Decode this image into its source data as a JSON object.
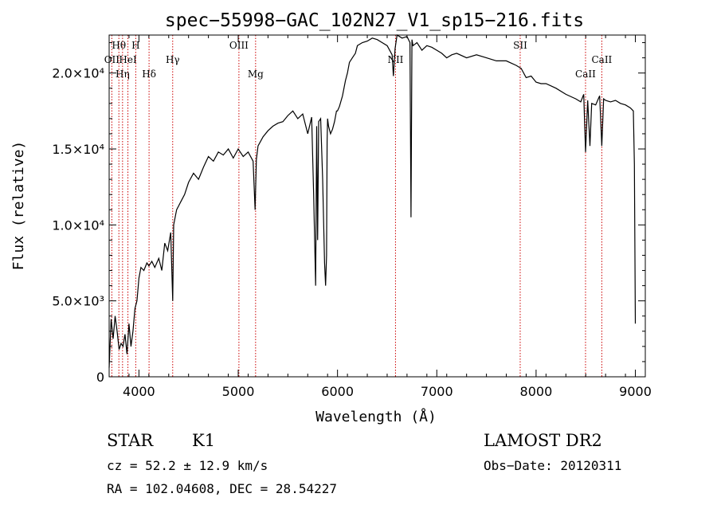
{
  "chart_data": {
    "type": "line",
    "title": "spec−55998−GAC_102N27_V1_sp15−216.fits",
    "xlabel": "Wavelength (Å)",
    "ylabel": "Flux (relative)",
    "xlim": [
      3700,
      9100
    ],
    "ylim": [
      0,
      22500
    ],
    "x_ticks": [
      {
        "value": 4000,
        "label": "4000"
      },
      {
        "value": 5000,
        "label": "5000"
      },
      {
        "value": 6000,
        "label": "6000"
      },
      {
        "value": 7000,
        "label": "7000"
      },
      {
        "value": 8000,
        "label": "8000"
      },
      {
        "value": 9000,
        "label": "9000"
      }
    ],
    "y_ticks": [
      {
        "value": 0,
        "label": "0"
      },
      {
        "value": 5000,
        "label": "5.0×10³"
      },
      {
        "value": 10000,
        "label": "1.0×10⁴"
      },
      {
        "value": 15000,
        "label": "1.5×10⁴"
      },
      {
        "value": 20000,
        "label": "2.0×10⁴"
      }
    ],
    "series": [
      {
        "x": [
          3700,
          3720,
          3740,
          3760,
          3780,
          3800,
          3820,
          3840,
          3860,
          3880,
          3900,
          3920,
          3940,
          3960,
          3980,
          4000,
          4020,
          4050,
          4080,
          4100,
          4130,
          4160,
          4200,
          4230,
          4260,
          4290,
          4320,
          4340,
          4350,
          4380,
          4420,
          4460,
          4500,
          4550,
          4600,
          4650,
          4700,
          4750,
          4800,
          4850,
          4900,
          4950,
          5000,
          5050,
          5100,
          5150,
          5170,
          5183,
          5200,
          5250,
          5300,
          5350,
          5400,
          5450,
          5500,
          5550,
          5600,
          5650,
          5700,
          5740,
          5760,
          5780,
          5790,
          5800,
          5810,
          5830,
          5850,
          5870,
          5880,
          5890,
          5895,
          5900,
          5910,
          5930,
          5950,
          5970,
          5990,
          6000,
          6020,
          6050,
          6080,
          6100,
          6120,
          6150,
          6180,
          6200,
          6250,
          6300,
          6350,
          6400,
          6450,
          6500,
          6550,
          6563,
          6580,
          6600,
          6650,
          6700,
          6730,
          6740,
          6750,
          6760,
          6800,
          6850,
          6900,
          6950,
          7000,
          7050,
          7100,
          7150,
          7200,
          7300,
          7400,
          7500,
          7600,
          7700,
          7800,
          7850,
          7900,
          7950,
          8000,
          8050,
          8100,
          8200,
          8300,
          8400,
          8450,
          8480,
          8498,
          8520,
          8542,
          8560,
          8600,
          8640,
          8662,
          8680,
          8700,
          8750,
          8800,
          8850,
          8900,
          8950,
          8980,
          8990,
          9000
        ],
        "y": [
          600,
          3800,
          2500,
          4000,
          3000,
          1800,
          2200,
          2000,
          2800,
          1500,
          3500,
          2000,
          3000,
          4500,
          5000,
          6500,
          7200,
          7000,
          7500,
          7300,
          7600,
          7200,
          7800,
          7000,
          8800,
          8300,
          9500,
          5000,
          10000,
          11000,
          11500,
          12000,
          12800,
          13400,
          13000,
          13800,
          14500,
          14200,
          14800,
          14600,
          15000,
          14400,
          15000,
          14500,
          14800,
          14200,
          11000,
          14300,
          15200,
          15800,
          16200,
          16500,
          16700,
          16800,
          17200,
          17500,
          17000,
          17300,
          16000,
          17100,
          12000,
          6000,
          16500,
          9000,
          16800,
          17000,
          13000,
          7500,
          6000,
          8000,
          15500,
          17000,
          16500,
          16000,
          16300,
          16800,
          17500,
          17500,
          17800,
          18500,
          19500,
          20000,
          20700,
          21000,
          21300,
          21800,
          22000,
          22100,
          22300,
          22200,
          22000,
          21800,
          21200,
          19800,
          21600,
          22500,
          22300,
          22400,
          22000,
          10500,
          22200,
          21800,
          22000,
          21500,
          21800,
          21700,
          21500,
          21300,
          21000,
          21200,
          21300,
          21000,
          21200,
          21000,
          20800,
          20800,
          20500,
          20300,
          19700,
          19800,
          19400,
          19300,
          19300,
          19000,
          18600,
          18300,
          18100,
          18600,
          14800,
          18200,
          15200,
          18000,
          17900,
          18500,
          15200,
          18300,
          18200,
          18100,
          18200,
          18000,
          17900,
          17700,
          17500,
          14000,
          3500
        ]
      }
    ],
    "lines": [
      {
        "name": "Hθ",
        "wavelength": 3798,
        "row": 1
      },
      {
        "name": "OII",
        "wavelength": 3727,
        "row": 2
      },
      {
        "name": "Hη",
        "wavelength": 3835,
        "row": 3
      },
      {
        "name": "HeI",
        "wavelength": 3889,
        "row": 2
      },
      {
        "name": "H",
        "wavelength": 3968,
        "row": 1
      },
      {
        "name": "Hδ",
        "wavelength": 4102,
        "row": 3
      },
      {
        "name": "Hγ",
        "wavelength": 4340,
        "row": 2
      },
      {
        "name": "OIII",
        "wavelength": 5007,
        "row": 1
      },
      {
        "name": "Mg",
        "wavelength": 5175,
        "row": 3
      },
      {
        "name": "NII",
        "wavelength": 6584,
        "row": 2
      },
      {
        "name": "SII",
        "wavelength": 7840,
        "row": 1
      },
      {
        "name": "CaII",
        "wavelength": 8498,
        "row": 3
      },
      {
        "name": "CaII",
        "wavelength": 8662,
        "row": 2
      }
    ],
    "colors": {
      "spectrum": "#000000",
      "line_marker": "#cc0000",
      "axes": "#000000"
    },
    "grid": false
  },
  "info": {
    "class_label": "STAR",
    "subclass_label": "K1",
    "survey": "LAMOST DR2",
    "velocity": "cz = 52.2 ± 12.9 km/s",
    "obs_date": "Obs−Date: 20120311",
    "coords": "RA = 102.04608, DEC =  28.54227"
  }
}
